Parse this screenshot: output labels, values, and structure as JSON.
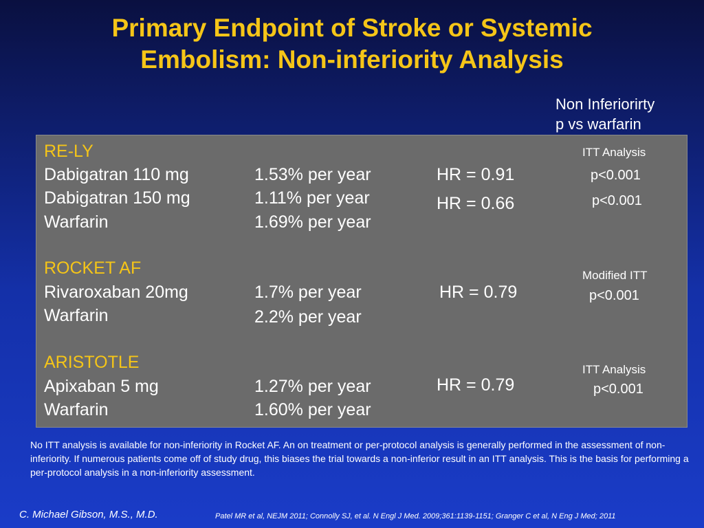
{
  "title": {
    "line1": "Primary Endpoint of Stroke or Systemic",
    "line2": "Embolism: Non-inferiority Analysis"
  },
  "ni_header": {
    "line1": "Non Inferiorirty",
    "line2": "p vs warfarin"
  },
  "trials": {
    "relyl": {
      "name": "RE-LY",
      "rows": [
        {
          "drug": "Dabigatran 110 mg",
          "rate": "1.53% per year",
          "hr": "HR = 0.91",
          "p": "p<0.001"
        },
        {
          "drug": "Dabigatran 150 mg",
          "rate": "1.11% per year",
          "hr": "HR = 0.66",
          "p": "p<0.001"
        },
        {
          "drug": "Warfarin",
          "rate": "1.69% per year"
        }
      ],
      "analysis": "ITT Analysis"
    },
    "rocket": {
      "name": "ROCKET AF",
      "rows": [
        {
          "drug": "Rivaroxaban 20mg",
          "rate": "1.7% per year",
          "hr": "HR = 0.79",
          "p": "p<0.001"
        },
        {
          "drug": "Warfarin",
          "rate": "2.2% per year"
        }
      ],
      "analysis": "Modified ITT"
    },
    "aristotle": {
      "name": "ARISTOTLE",
      "rows": [
        {
          "drug": "Apixaban 5 mg",
          "rate": "1.27% per year",
          "hr": "HR = 0.79",
          "p": "p<0.001"
        },
        {
          "drug": "Warfarin",
          "rate": "1.60% per year"
        }
      ],
      "analysis": "ITT Analysis"
    }
  },
  "note": "No ITT analysis is available for non-inferiority in Rocket AF.  An on treatment or per-protocol analysis is generally performed in the assessment of non-inferiority.  If numerous patients come off of study drug, this biases the trial towards a non-inferior result in an ITT analysis. This is the basis for performing a per-protocol analysis in a non-inferiority assessment.",
  "footer": {
    "author": "C. Michael Gibson, M.S., M.D.",
    "references": "Patel MR  et al, NEJM 2011; Connolly SJ, et al. N Engl J Med. 2009;361:1139-1151; Granger C et al, N Eng J Med; 2011"
  },
  "colors": {
    "title": "#f5c518",
    "trial_name": "#f5c518",
    "panel": "#6b6b6b",
    "background_top": "#0a1040",
    "background_bottom": "#1a3cc8"
  }
}
